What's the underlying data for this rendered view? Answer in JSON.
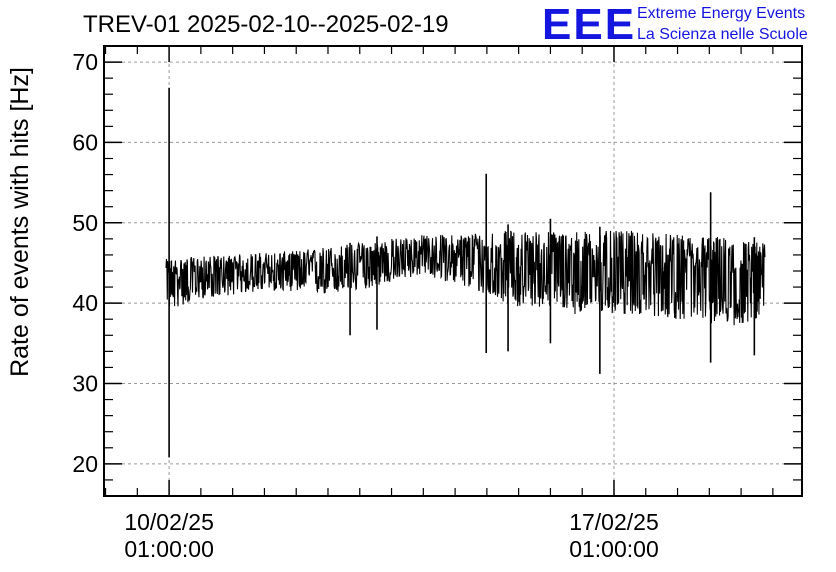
{
  "chart_data": {
    "type": "line",
    "title": "TREV-01 2025-02-10--2025-02-19",
    "xlabel": "",
    "ylabel": "Rate of events with hits [Hz]",
    "ylim": [
      16,
      72
    ],
    "yticks": [
      20,
      30,
      40,
      50,
      60,
      70
    ],
    "xticks": [
      {
        "date": "10/02/25",
        "time": "01:00:00"
      },
      {
        "date": "17/02/25",
        "time": "01:00:00"
      }
    ],
    "grid": true,
    "xlim": [
      "2025-02-09T00:25",
      "2025-02-20T00:00"
    ],
    "series": [
      {
        "name": "",
        "color": "#000000",
        "x": [
          "2025-02-09T23:50",
          "2025-02-10T01:00",
          "2025-02-10T12:00",
          "2025-02-11T00:00",
          "2025-02-11T12:00",
          "2025-02-12T00:00",
          "2025-02-12T12:00",
          "2025-02-13T00:00",
          "2025-02-13T12:00",
          "2025-02-14T00:00",
          "2025-02-14T12:00",
          "2025-02-15T00:00",
          "2025-02-15T12:00",
          "2025-02-16T00:00",
          "2025-02-16T12:00",
          "2025-02-17T00:00",
          "2025-02-17T12:00",
          "2025-02-18T00:00",
          "2025-02-18T12:00",
          "2025-02-19T00:00",
          "2025-02-19T10:00"
        ],
        "y": [
          43.5,
          43.2,
          43.3,
          43.6,
          43.8,
          44.0,
          44.3,
          44.6,
          45.2,
          46.0,
          45.8,
          45.2,
          44.8,
          44.6,
          44.4,
          44.2,
          44.0,
          43.8,
          43.5,
          42.8,
          43.0
        ],
        "band_low": [
          41,
          39,
          40.5,
          41,
          41.5,
          41.5,
          41,
          41.5,
          42.5,
          43.5,
          42.5,
          41,
          39.5,
          39.5,
          38.5,
          38.5,
          38.5,
          38,
          37.5,
          37,
          38.5
        ],
        "band_high": [
          45.5,
          45.5,
          45.8,
          46,
          46.3,
          46.5,
          47,
          47.5,
          48,
          48.5,
          48.5,
          49,
          49,
          49,
          49,
          49,
          49,
          48.5,
          48.5,
          48,
          47.5
        ],
        "spikes": [
          {
            "x": "2025-02-10T01:00",
            "low": 20.8,
            "high": 66.8
          },
          {
            "x": "2025-02-15T00:45",
            "low": 33.8,
            "high": 56.1
          },
          {
            "x": "2025-02-16T19:40",
            "low": 31.2,
            "high": 49.5
          },
          {
            "x": "2025-02-18T13:30",
            "low": 32.6,
            "high": 53.8
          },
          {
            "x": "2025-02-12T21:20",
            "low": 36.0,
            "high": 47.5
          },
          {
            "x": "2025-02-13T07:30",
            "low": 36.7,
            "high": 48.3
          },
          {
            "x": "2025-02-15T09:00",
            "low": 34.0,
            "high": 49.8
          },
          {
            "x": "2025-02-16T01:00",
            "low": 35.0,
            "high": 50.5
          },
          {
            "x": "2025-02-19T06:00",
            "low": 33.5,
            "high": 48.2
          }
        ]
      }
    ]
  },
  "logo": {
    "mark": "EEE",
    "line1": "Extreme Energy Events",
    "line2": "La Scienza nelle Scuole"
  },
  "colors": {
    "logo": "#1515e0",
    "grid": "#9a9a9a",
    "frame": "#000000"
  }
}
